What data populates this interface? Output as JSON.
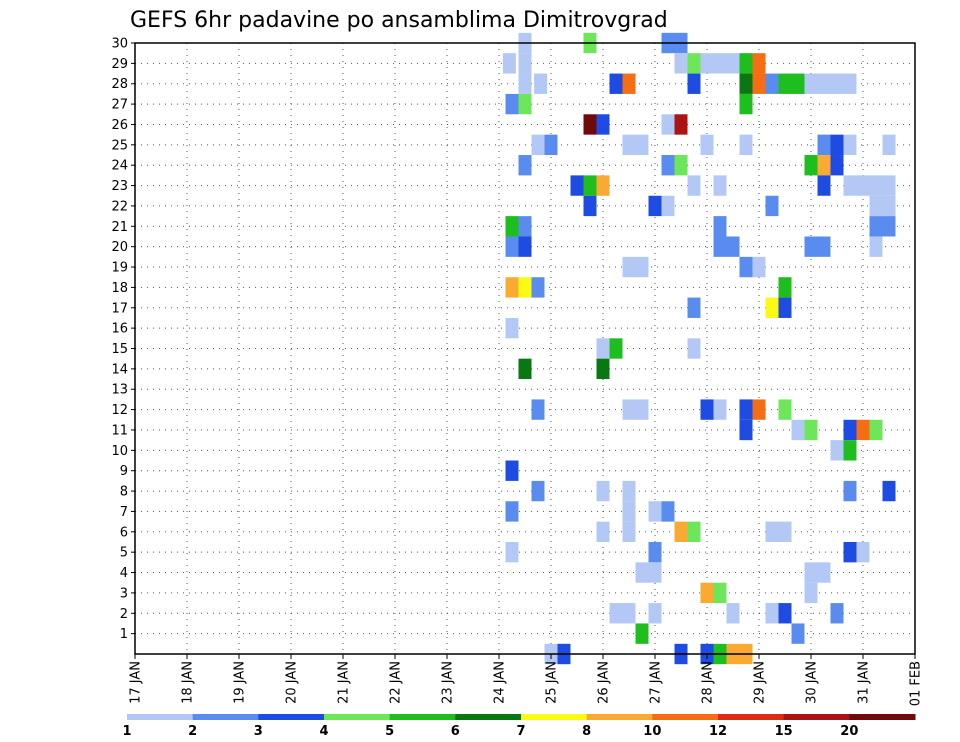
{
  "chart_data": {
    "type": "heatmap",
    "title": "GEFS 6hr padavine po ansamblima Dimitrovgrad",
    "xlabel": "",
    "ylabel": "",
    "x_tick_labels": [
      "17 JAN",
      "18 JAN",
      "19 JAN",
      "20 JAN",
      "21 JAN",
      "22 JAN",
      "23 JAN",
      "24 JAN",
      "25 JAN",
      "26 JAN",
      "27 JAN",
      "28 JAN",
      "29 JAN",
      "30 JAN",
      "31 JAN",
      "01 FEB"
    ],
    "x_range_days": [
      0,
      15
    ],
    "y_tick_labels": [
      "1",
      "2",
      "3",
      "4",
      "5",
      "6",
      "7",
      "8",
      "9",
      "10",
      "11",
      "12",
      "13",
      "14",
      "15",
      "16",
      "17",
      "18",
      "19",
      "20",
      "21",
      "22",
      "23",
      "24",
      "25",
      "26",
      "27",
      "28",
      "29",
      "30"
    ],
    "y_range": [
      0,
      30
    ],
    "grid": true,
    "colorbar": {
      "labels": [
        "1",
        "2",
        "3",
        "4",
        "5",
        "6",
        "7",
        "8",
        "10",
        "12",
        "15",
        "20"
      ],
      "colors": [
        "#b4c8f5",
        "#5a8cf0",
        "#1e4be1",
        "#6ee65a",
        "#1ebe1e",
        "#0a7812",
        "#fafa14",
        "#faaa32",
        "#f56e14",
        "#dc2d14",
        "#aa1414",
        "#6e0a0a"
      ]
    },
    "cells": [
      [
        7.2,
        29,
        0
      ],
      [
        7.5,
        30,
        0
      ],
      [
        7.5,
        29,
        0
      ],
      [
        7.5,
        28,
        0
      ],
      [
        7.8,
        28,
        0
      ],
      [
        8.75,
        30,
        3
      ],
      [
        10.25,
        30,
        1
      ],
      [
        10.5,
        30,
        1
      ],
      [
        9.25,
        28,
        2
      ],
      [
        9.5,
        28,
        8
      ],
      [
        10.75,
        28,
        2
      ],
      [
        10.5,
        29,
        0
      ],
      [
        10.75,
        29,
        3
      ],
      [
        11.0,
        29,
        0
      ],
      [
        11.25,
        29,
        0
      ],
      [
        11.5,
        29,
        0
      ],
      [
        11.75,
        29,
        4
      ],
      [
        11.75,
        28,
        5
      ],
      [
        11.75,
        27,
        4
      ],
      [
        12.0,
        29,
        8
      ],
      [
        12.0,
        28,
        8
      ],
      [
        12.25,
        28,
        1
      ],
      [
        12.5,
        28,
        4
      ],
      [
        12.75,
        28,
        4
      ],
      [
        13.0,
        28,
        0
      ],
      [
        13.25,
        28,
        0
      ],
      [
        13.5,
        28,
        0
      ],
      [
        13.75,
        28,
        0
      ],
      [
        7.25,
        27,
        1
      ],
      [
        7.5,
        27,
        3
      ],
      [
        8.75,
        26,
        11
      ],
      [
        9.0,
        26,
        2
      ],
      [
        9.5,
        25,
        0
      ],
      [
        9.75,
        25,
        0
      ],
      [
        10.25,
        26,
        0
      ],
      [
        10.5,
        26,
        10
      ],
      [
        7.75,
        25,
        0
      ],
      [
        8.0,
        25,
        1
      ],
      [
        11.0,
        25,
        0
      ],
      [
        11.75,
        25,
        0
      ],
      [
        13.25,
        25,
        1
      ],
      [
        13.5,
        25,
        2
      ],
      [
        13.75,
        25,
        0
      ],
      [
        14.5,
        25,
        0
      ],
      [
        7.5,
        24,
        1
      ],
      [
        10.25,
        24,
        1
      ],
      [
        10.5,
        24,
        3
      ],
      [
        13.0,
        24,
        4
      ],
      [
        13.25,
        24,
        7
      ],
      [
        13.5,
        24,
        2
      ],
      [
        13.75,
        23,
        0
      ],
      [
        14.0,
        23,
        0
      ],
      [
        14.25,
        23,
        0
      ],
      [
        14.5,
        23,
        0
      ],
      [
        8.5,
        23,
        2
      ],
      [
        8.75,
        23,
        4
      ],
      [
        9.0,
        23,
        7
      ],
      [
        10.75,
        23,
        0
      ],
      [
        11.25,
        23,
        0
      ],
      [
        13.25,
        23,
        2
      ],
      [
        8.75,
        22,
        2
      ],
      [
        10.0,
        22,
        2
      ],
      [
        10.25,
        22,
        0
      ],
      [
        12.25,
        22,
        1
      ],
      [
        14.25,
        22,
        0
      ],
      [
        14.5,
        22,
        0
      ],
      [
        7.25,
        21,
        4
      ],
      [
        7.5,
        21,
        1
      ],
      [
        11.25,
        21,
        1
      ],
      [
        14.25,
        21,
        1
      ],
      [
        14.5,
        21,
        1
      ],
      [
        7.25,
        20,
        1
      ],
      [
        7.5,
        20,
        2
      ],
      [
        11.25,
        20,
        1
      ],
      [
        11.5,
        20,
        1
      ],
      [
        13.0,
        20,
        1
      ],
      [
        13.25,
        20,
        1
      ],
      [
        14.25,
        20,
        0
      ],
      [
        9.5,
        19,
        0
      ],
      [
        9.75,
        19,
        0
      ],
      [
        11.75,
        19,
        1
      ],
      [
        12.0,
        19,
        0
      ],
      [
        7.25,
        18,
        7
      ],
      [
        7.5,
        18,
        6
      ],
      [
        7.75,
        18,
        1
      ],
      [
        12.5,
        18,
        4
      ],
      [
        12.25,
        17,
        6
      ],
      [
        12.5,
        17,
        2
      ],
      [
        10.75,
        17,
        1
      ],
      [
        7.25,
        16,
        0
      ],
      [
        9.0,
        15,
        0
      ],
      [
        9.25,
        15,
        4
      ],
      [
        10.75,
        15,
        0
      ],
      [
        7.5,
        14,
        5
      ],
      [
        9.0,
        14,
        5
      ],
      [
        7.75,
        12,
        1
      ],
      [
        9.5,
        12,
        0
      ],
      [
        9.75,
        12,
        0
      ],
      [
        11.0,
        12,
        2
      ],
      [
        11.25,
        12,
        0
      ],
      [
        11.75,
        12,
        2
      ],
      [
        12.0,
        12,
        8
      ],
      [
        12.5,
        12,
        3
      ],
      [
        11.75,
        11,
        2
      ],
      [
        12.75,
        11,
        0
      ],
      [
        13.0,
        11,
        3
      ],
      [
        13.75,
        11,
        2
      ],
      [
        14.0,
        11,
        8
      ],
      [
        14.25,
        11,
        3
      ],
      [
        13.5,
        10,
        0
      ],
      [
        13.75,
        10,
        4
      ],
      [
        7.25,
        9,
        2
      ],
      [
        7.75,
        8,
        1
      ],
      [
        9.0,
        8,
        0
      ],
      [
        9.5,
        8,
        0
      ],
      [
        13.75,
        8,
        1
      ],
      [
        14.5,
        8,
        2
      ],
      [
        7.25,
        7,
        1
      ],
      [
        9.5,
        7,
        0
      ],
      [
        10.0,
        7,
        0
      ],
      [
        10.25,
        7,
        1
      ],
      [
        9.0,
        6,
        0
      ],
      [
        9.5,
        6,
        0
      ],
      [
        10.5,
        6,
        7
      ],
      [
        10.75,
        6,
        3
      ],
      [
        12.25,
        6,
        0
      ],
      [
        12.5,
        6,
        0
      ],
      [
        7.25,
        5,
        0
      ],
      [
        10.0,
        5,
        1
      ],
      [
        13.75,
        5,
        2
      ],
      [
        14.0,
        5,
        0
      ],
      [
        9.75,
        4,
        0
      ],
      [
        10.0,
        4,
        0
      ],
      [
        13.0,
        4,
        0
      ],
      [
        13.25,
        4,
        0
      ],
      [
        11.0,
        3,
        7
      ],
      [
        11.25,
        3,
        3
      ],
      [
        13.0,
        3,
        0
      ],
      [
        9.25,
        2,
        0
      ],
      [
        9.5,
        2,
        0
      ],
      [
        10.0,
        2,
        0
      ],
      [
        11.5,
        2,
        0
      ],
      [
        12.25,
        2,
        0
      ],
      [
        12.5,
        2,
        2
      ],
      [
        13.5,
        2,
        1
      ],
      [
        9.75,
        1,
        4
      ],
      [
        12.75,
        1,
        1
      ],
      [
        8.0,
        0,
        0
      ],
      [
        8.25,
        0,
        2
      ],
      [
        10.5,
        0,
        2
      ],
      [
        11.0,
        0,
        2
      ],
      [
        11.25,
        0,
        4
      ],
      [
        11.5,
        0,
        7
      ],
      [
        11.75,
        0,
        7
      ]
    ]
  }
}
